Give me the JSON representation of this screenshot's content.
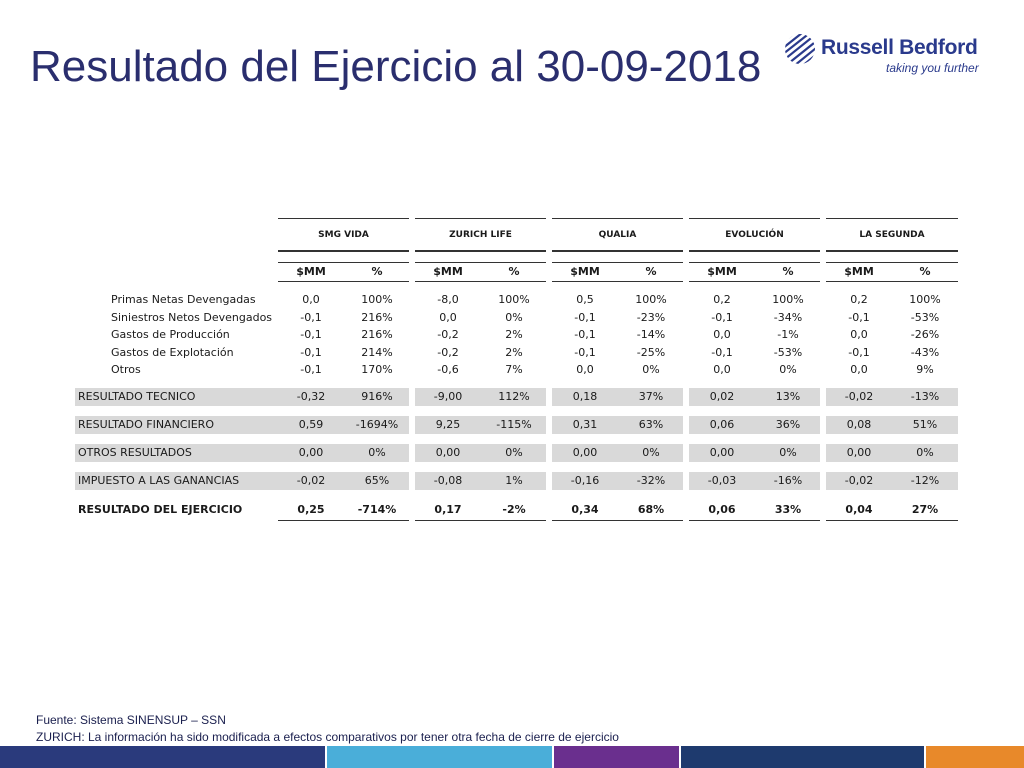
{
  "title": "Resultado del Ejercicio al 30-09-2018",
  "logo": {
    "name": "Russell Bedford",
    "tagline": "taking you further",
    "icon": "globe-stripes-icon",
    "color": "#2a3a8c"
  },
  "table": {
    "groups": [
      "SMG VIDA",
      "ZURICH LIFE",
      "QUALIA",
      "EVOLUCIÓN",
      "LA SEGUNDA"
    ],
    "subheaders": [
      "$MM",
      "%"
    ],
    "rows": [
      {
        "label": "Primas Netas Devengadas",
        "values": [
          "0,0",
          "100%",
          "-8,0",
          "100%",
          "0,5",
          "100%",
          "0,2",
          "100%",
          "0,2",
          "100%"
        ]
      },
      {
        "label": "Siniestros Netos Devengados",
        "values": [
          "-0,1",
          "216%",
          "0,0",
          "0%",
          "-0,1",
          "-23%",
          "-0,1",
          "-34%",
          "-0,1",
          "-53%"
        ]
      },
      {
        "label": "Gastos de Producción",
        "values": [
          "-0,1",
          "216%",
          "-0,2",
          "2%",
          "-0,1",
          "-14%",
          "0,0",
          "-1%",
          "0,0",
          "-26%"
        ]
      },
      {
        "label": "Gastos de Explotación",
        "values": [
          "-0,1",
          "214%",
          "-0,2",
          "2%",
          "-0,1",
          "-25%",
          "-0,1",
          "-53%",
          "-0,1",
          "-43%"
        ]
      },
      {
        "label": "Otros",
        "values": [
          "-0,1",
          "170%",
          "-0,6",
          "7%",
          "0,0",
          "0%",
          "0,0",
          "0%",
          "0,0",
          "9%"
        ]
      }
    ],
    "summary": [
      {
        "label": "RESULTADO TECNICO",
        "values": [
          "-0,32",
          "916%",
          "-9,00",
          "112%",
          "0,18",
          "37%",
          "0,02",
          "13%",
          "-0,02",
          "-13%"
        ],
        "shaded": true,
        "bold": false
      },
      {
        "label": "RESULTADO FINANCIERO",
        "values": [
          "0,59",
          "-1694%",
          "9,25",
          "-115%",
          "0,31",
          "63%",
          "0,06",
          "36%",
          "0,08",
          "51%"
        ],
        "shaded": true,
        "bold": false
      },
      {
        "label": "OTROS RESULTADOS",
        "values": [
          "0,00",
          "0%",
          "0,00",
          "0%",
          "0,00",
          "0%",
          "0,00",
          "0%",
          "0,00",
          "0%"
        ],
        "shaded": true,
        "bold": false
      },
      {
        "label": "IMPUESTO A LAS GANANCIAS",
        "values": [
          "-0,02",
          "65%",
          "-0,08",
          "1%",
          "-0,16",
          "-32%",
          "-0,03",
          "-16%",
          "-0,02",
          "-12%"
        ],
        "shaded": true,
        "bold": false
      },
      {
        "label": "RESULTADO DEL EJERCICIO",
        "values": [
          "0,25",
          "-714%",
          "0,17",
          "-2%",
          "0,34",
          "68%",
          "0,06",
          "33%",
          "0,04",
          "27%"
        ],
        "shaded": false,
        "bold": true
      }
    ]
  },
  "footer": {
    "line1": "Fuente: Sistema SINENSUP – SSN",
    "line2": "ZURICH: La información ha sido modificada a efectos comparativos por tener otra fecha de cierre de ejercicio"
  },
  "colors": {
    "title": "#2a2e6e",
    "bar": [
      "#2a3a7c",
      "#4aaed9",
      "#6a2f8e",
      "#1e3a6e",
      "#e8892a"
    ]
  }
}
